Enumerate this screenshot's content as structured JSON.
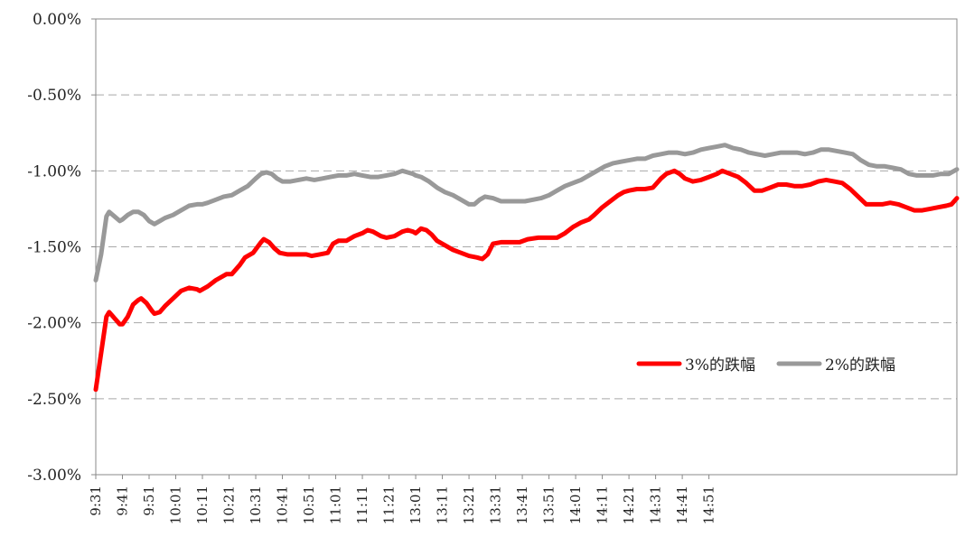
{
  "chart_data": {
    "type": "line",
    "title": "",
    "xlabel": "",
    "ylabel": "",
    "ylim": [
      -3.0,
      0.0
    ],
    "yticks": [
      "0.00%",
      "-0.50%",
      "-1.00%",
      "-1.50%",
      "-2.00%",
      "-2.50%",
      "-3.00%"
    ],
    "ytick_values": [
      0,
      -0.5,
      -1.0,
      -1.5,
      -2.0,
      -2.5,
      -3.0
    ],
    "xticks": [
      "9:31",
      "9:41",
      "9:51",
      "10:01",
      "10:11",
      "10:21",
      "10:31",
      "10:41",
      "10:51",
      "11:01",
      "11:11",
      "11:21",
      "13:01",
      "13:11",
      "13:21",
      "13:31",
      "13:41",
      "13:51",
      "14:01",
      "14:11",
      "14:21",
      "14:31",
      "14:41",
      "14:51"
    ],
    "grid": "horizontal dashed",
    "legend_position": "right-center",
    "series": [
      {
        "name": "3%的跌幅",
        "color": "#ff0000",
        "points": [
          [
            "9:31",
            -2.44
          ],
          [
            "9:33",
            -2.2
          ],
          [
            "9:35",
            -1.96
          ],
          [
            "9:36",
            -1.93
          ],
          [
            "9:38",
            -1.97
          ],
          [
            "9:40",
            -2.01
          ],
          [
            "9:41",
            -2.01
          ],
          [
            "9:43",
            -1.96
          ],
          [
            "9:45",
            -1.88
          ],
          [
            "9:47",
            -1.85
          ],
          [
            "9:48",
            -1.84
          ],
          [
            "9:50",
            -1.87
          ],
          [
            "9:52",
            -1.92
          ],
          [
            "9:53",
            -1.94
          ],
          [
            "9:55",
            -1.93
          ],
          [
            "9:57",
            -1.89
          ],
          [
            "10:00",
            -1.84
          ],
          [
            "10:03",
            -1.79
          ],
          [
            "10:06",
            -1.77
          ],
          [
            "10:09",
            -1.78
          ],
          [
            "10:10",
            -1.79
          ],
          [
            "10:13",
            -1.76
          ],
          [
            "10:16",
            -1.72
          ],
          [
            "10:20",
            -1.68
          ],
          [
            "10:22",
            -1.68
          ],
          [
            "10:25",
            -1.62
          ],
          [
            "10:27",
            -1.57
          ],
          [
            "10:30",
            -1.54
          ],
          [
            "10:33",
            -1.47
          ],
          [
            "10:34",
            -1.45
          ],
          [
            "10:36",
            -1.47
          ],
          [
            "10:38",
            -1.51
          ],
          [
            "10:40",
            -1.54
          ],
          [
            "10:43",
            -1.55
          ],
          [
            "10:46",
            -1.55
          ],
          [
            "10:50",
            -1.55
          ],
          [
            "10:52",
            -1.56
          ],
          [
            "10:55",
            -1.55
          ],
          [
            "10:58",
            -1.54
          ],
          [
            "11:00",
            -1.48
          ],
          [
            "11:02",
            -1.46
          ],
          [
            "11:05",
            -1.46
          ],
          [
            "11:08",
            -1.43
          ],
          [
            "11:11",
            -1.41
          ],
          [
            "11:13",
            -1.39
          ],
          [
            "11:15",
            -1.4
          ],
          [
            "11:18",
            -1.43
          ],
          [
            "11:20",
            -1.44
          ],
          [
            "11:23",
            -1.43
          ],
          [
            "11:26",
            -1.4
          ],
          [
            "11:28",
            -1.39
          ],
          [
            "11:30",
            -1.4
          ],
          [
            "13:01",
            -1.41
          ],
          [
            "13:03",
            -1.38
          ],
          [
            "13:05",
            -1.39
          ],
          [
            "13:07",
            -1.42
          ],
          [
            "13:09",
            -1.46
          ],
          [
            "13:12",
            -1.49
          ],
          [
            "13:15",
            -1.52
          ],
          [
            "13:18",
            -1.54
          ],
          [
            "13:21",
            -1.56
          ],
          [
            "13:24",
            -1.57
          ],
          [
            "13:26",
            -1.58
          ],
          [
            "13:28",
            -1.55
          ],
          [
            "13:30",
            -1.48
          ],
          [
            "13:33",
            -1.47
          ],
          [
            "13:37",
            -1.47
          ],
          [
            "13:40",
            -1.47
          ],
          [
            "13:43",
            -1.45
          ],
          [
            "13:47",
            -1.44
          ],
          [
            "13:51",
            -1.44
          ],
          [
            "13:54",
            -1.44
          ],
          [
            "13:57",
            -1.41
          ],
          [
            "14:00",
            -1.37
          ],
          [
            "14:03",
            -1.34
          ],
          [
            "14:06",
            -1.32
          ],
          [
            "14:08",
            -1.29
          ],
          [
            "14:11",
            -1.24
          ],
          [
            "14:14",
            -1.2
          ],
          [
            "14:17",
            -1.16
          ],
          [
            "14:19",
            -1.14
          ],
          [
            "14:21",
            -1.13
          ],
          [
            "14:24",
            -1.12
          ],
          [
            "14:27",
            -1.12
          ],
          [
            "14:30",
            -1.11
          ],
          [
            "14:33",
            -1.05
          ],
          [
            "14:35",
            -1.02
          ],
          [
            "14:38",
            -1.0
          ],
          [
            "14:40",
            -1.02
          ],
          [
            "14:42",
            -1.05
          ],
          [
            "14:45",
            -1.07
          ],
          [
            "14:48",
            -1.06
          ],
          [
            "14:51",
            -1.04
          ],
          [
            "14:54",
            -1.02
          ],
          [
            "14:56",
            -1.0
          ],
          [
            "14:59",
            -1.02
          ],
          [
            "15:02",
            -1.04
          ],
          [
            "15:05",
            -1.08
          ],
          [
            "15:08",
            -1.13
          ],
          [
            "15:11",
            -1.13
          ],
          [
            "15:14",
            -1.11
          ],
          [
            "15:17",
            -1.09
          ],
          [
            "15:20",
            -1.09
          ],
          [
            "15:23",
            -1.1
          ],
          [
            "15:26",
            -1.1
          ],
          [
            "15:29",
            -1.09
          ],
          [
            "15:32",
            -1.07
          ],
          [
            "15:35",
            -1.06
          ],
          [
            "15:38",
            -1.07
          ],
          [
            "15:41",
            -1.08
          ],
          [
            "15:44",
            -1.12
          ],
          [
            "15:47",
            -1.17
          ],
          [
            "15:50",
            -1.22
          ],
          [
            "15:53",
            -1.22
          ],
          [
            "15:56",
            -1.22
          ],
          [
            "15:59",
            -1.21
          ],
          [
            "16:02",
            -1.22
          ],
          [
            "16:05",
            -1.24
          ],
          [
            "16:08",
            -1.26
          ],
          [
            "16:11",
            -1.26
          ],
          [
            "16:14",
            -1.25
          ],
          [
            "16:17",
            -1.24
          ],
          [
            "16:20",
            -1.23
          ],
          [
            "16:22",
            -1.22
          ],
          [
            "16:24",
            -1.18
          ]
        ]
      },
      {
        "name": "2%的跌幅",
        "color": "#999999",
        "points": [
          [
            "9:31",
            -1.72
          ],
          [
            "9:33",
            -1.55
          ],
          [
            "9:35",
            -1.3
          ],
          [
            "9:36",
            -1.27
          ],
          [
            "9:38",
            -1.3
          ],
          [
            "9:40",
            -1.33
          ],
          [
            "9:41",
            -1.32
          ],
          [
            "9:43",
            -1.29
          ],
          [
            "9:45",
            -1.27
          ],
          [
            "9:47",
            -1.27
          ],
          [
            "9:49",
            -1.29
          ],
          [
            "9:51",
            -1.33
          ],
          [
            "9:53",
            -1.35
          ],
          [
            "9:55",
            -1.33
          ],
          [
            "9:57",
            -1.31
          ],
          [
            "10:00",
            -1.29
          ],
          [
            "10:03",
            -1.26
          ],
          [
            "10:06",
            -1.23
          ],
          [
            "10:09",
            -1.22
          ],
          [
            "10:11",
            -1.22
          ],
          [
            "10:13",
            -1.21
          ],
          [
            "10:16",
            -1.19
          ],
          [
            "10:19",
            -1.17
          ],
          [
            "10:22",
            -1.16
          ],
          [
            "10:25",
            -1.13
          ],
          [
            "10:28",
            -1.1
          ],
          [
            "10:31",
            -1.05
          ],
          [
            "10:33",
            -1.02
          ],
          [
            "10:35",
            -1.01
          ],
          [
            "10:37",
            -1.02
          ],
          [
            "10:39",
            -1.05
          ],
          [
            "10:41",
            -1.07
          ],
          [
            "10:44",
            -1.07
          ],
          [
            "10:47",
            -1.06
          ],
          [
            "10:50",
            -1.05
          ],
          [
            "10:53",
            -1.06
          ],
          [
            "10:56",
            -1.05
          ],
          [
            "10:59",
            -1.04
          ],
          [
            "11:02",
            -1.03
          ],
          [
            "11:05",
            -1.03
          ],
          [
            "11:08",
            -1.02
          ],
          [
            "11:11",
            -1.03
          ],
          [
            "11:14",
            -1.04
          ],
          [
            "11:17",
            -1.04
          ],
          [
            "11:20",
            -1.03
          ],
          [
            "11:23",
            -1.02
          ],
          [
            "11:26",
            -1.0
          ],
          [
            "11:28",
            -1.01
          ],
          [
            "11:30",
            -1.02
          ],
          [
            "13:01",
            -1.03
          ],
          [
            "13:03",
            -1.04
          ],
          [
            "13:06",
            -1.07
          ],
          [
            "13:09",
            -1.11
          ],
          [
            "13:12",
            -1.14
          ],
          [
            "13:15",
            -1.16
          ],
          [
            "13:18",
            -1.19
          ],
          [
            "13:21",
            -1.22
          ],
          [
            "13:23",
            -1.22
          ],
          [
            "13:25",
            -1.19
          ],
          [
            "13:27",
            -1.17
          ],
          [
            "13:30",
            -1.18
          ],
          [
            "13:33",
            -1.2
          ],
          [
            "13:36",
            -1.2
          ],
          [
            "13:39",
            -1.2
          ],
          [
            "13:42",
            -1.2
          ],
          [
            "13:45",
            -1.19
          ],
          [
            "13:48",
            -1.18
          ],
          [
            "13:51",
            -1.16
          ],
          [
            "13:54",
            -1.13
          ],
          [
            "13:57",
            -1.1
          ],
          [
            "14:00",
            -1.08
          ],
          [
            "14:03",
            -1.06
          ],
          [
            "14:06",
            -1.03
          ],
          [
            "14:09",
            -1.0
          ],
          [
            "14:12",
            -0.97
          ],
          [
            "14:15",
            -0.95
          ],
          [
            "14:18",
            -0.94
          ],
          [
            "14:21",
            -0.93
          ],
          [
            "14:24",
            -0.92
          ],
          [
            "14:27",
            -0.92
          ],
          [
            "14:30",
            -0.9
          ],
          [
            "14:33",
            -0.89
          ],
          [
            "14:36",
            -0.88
          ],
          [
            "14:39",
            -0.88
          ],
          [
            "14:42",
            -0.89
          ],
          [
            "14:45",
            -0.88
          ],
          [
            "14:48",
            -0.86
          ],
          [
            "14:51",
            -0.85
          ],
          [
            "14:54",
            -0.84
          ],
          [
            "14:57",
            -0.83
          ],
          [
            "15:00",
            -0.85
          ],
          [
            "15:03",
            -0.86
          ],
          [
            "15:06",
            -0.88
          ],
          [
            "15:09",
            -0.89
          ],
          [
            "15:12",
            -0.9
          ],
          [
            "15:15",
            -0.89
          ],
          [
            "15:18",
            -0.88
          ],
          [
            "15:21",
            -0.88
          ],
          [
            "15:24",
            -0.88
          ],
          [
            "15:27",
            -0.89
          ],
          [
            "15:30",
            -0.88
          ],
          [
            "15:33",
            -0.86
          ],
          [
            "15:36",
            -0.86
          ],
          [
            "15:39",
            -0.87
          ],
          [
            "15:42",
            -0.88
          ],
          [
            "15:45",
            -0.89
          ],
          [
            "15:48",
            -0.93
          ],
          [
            "15:51",
            -0.96
          ],
          [
            "15:54",
            -0.97
          ],
          [
            "15:57",
            -0.97
          ],
          [
            "16:00",
            -0.98
          ],
          [
            "16:03",
            -0.99
          ],
          [
            "16:06",
            -1.02
          ],
          [
            "16:09",
            -1.03
          ],
          [
            "16:12",
            -1.03
          ],
          [
            "16:15",
            -1.03
          ],
          [
            "16:18",
            -1.02
          ],
          [
            "16:21",
            -1.02
          ],
          [
            "16:24",
            -0.99
          ]
        ]
      }
    ]
  }
}
